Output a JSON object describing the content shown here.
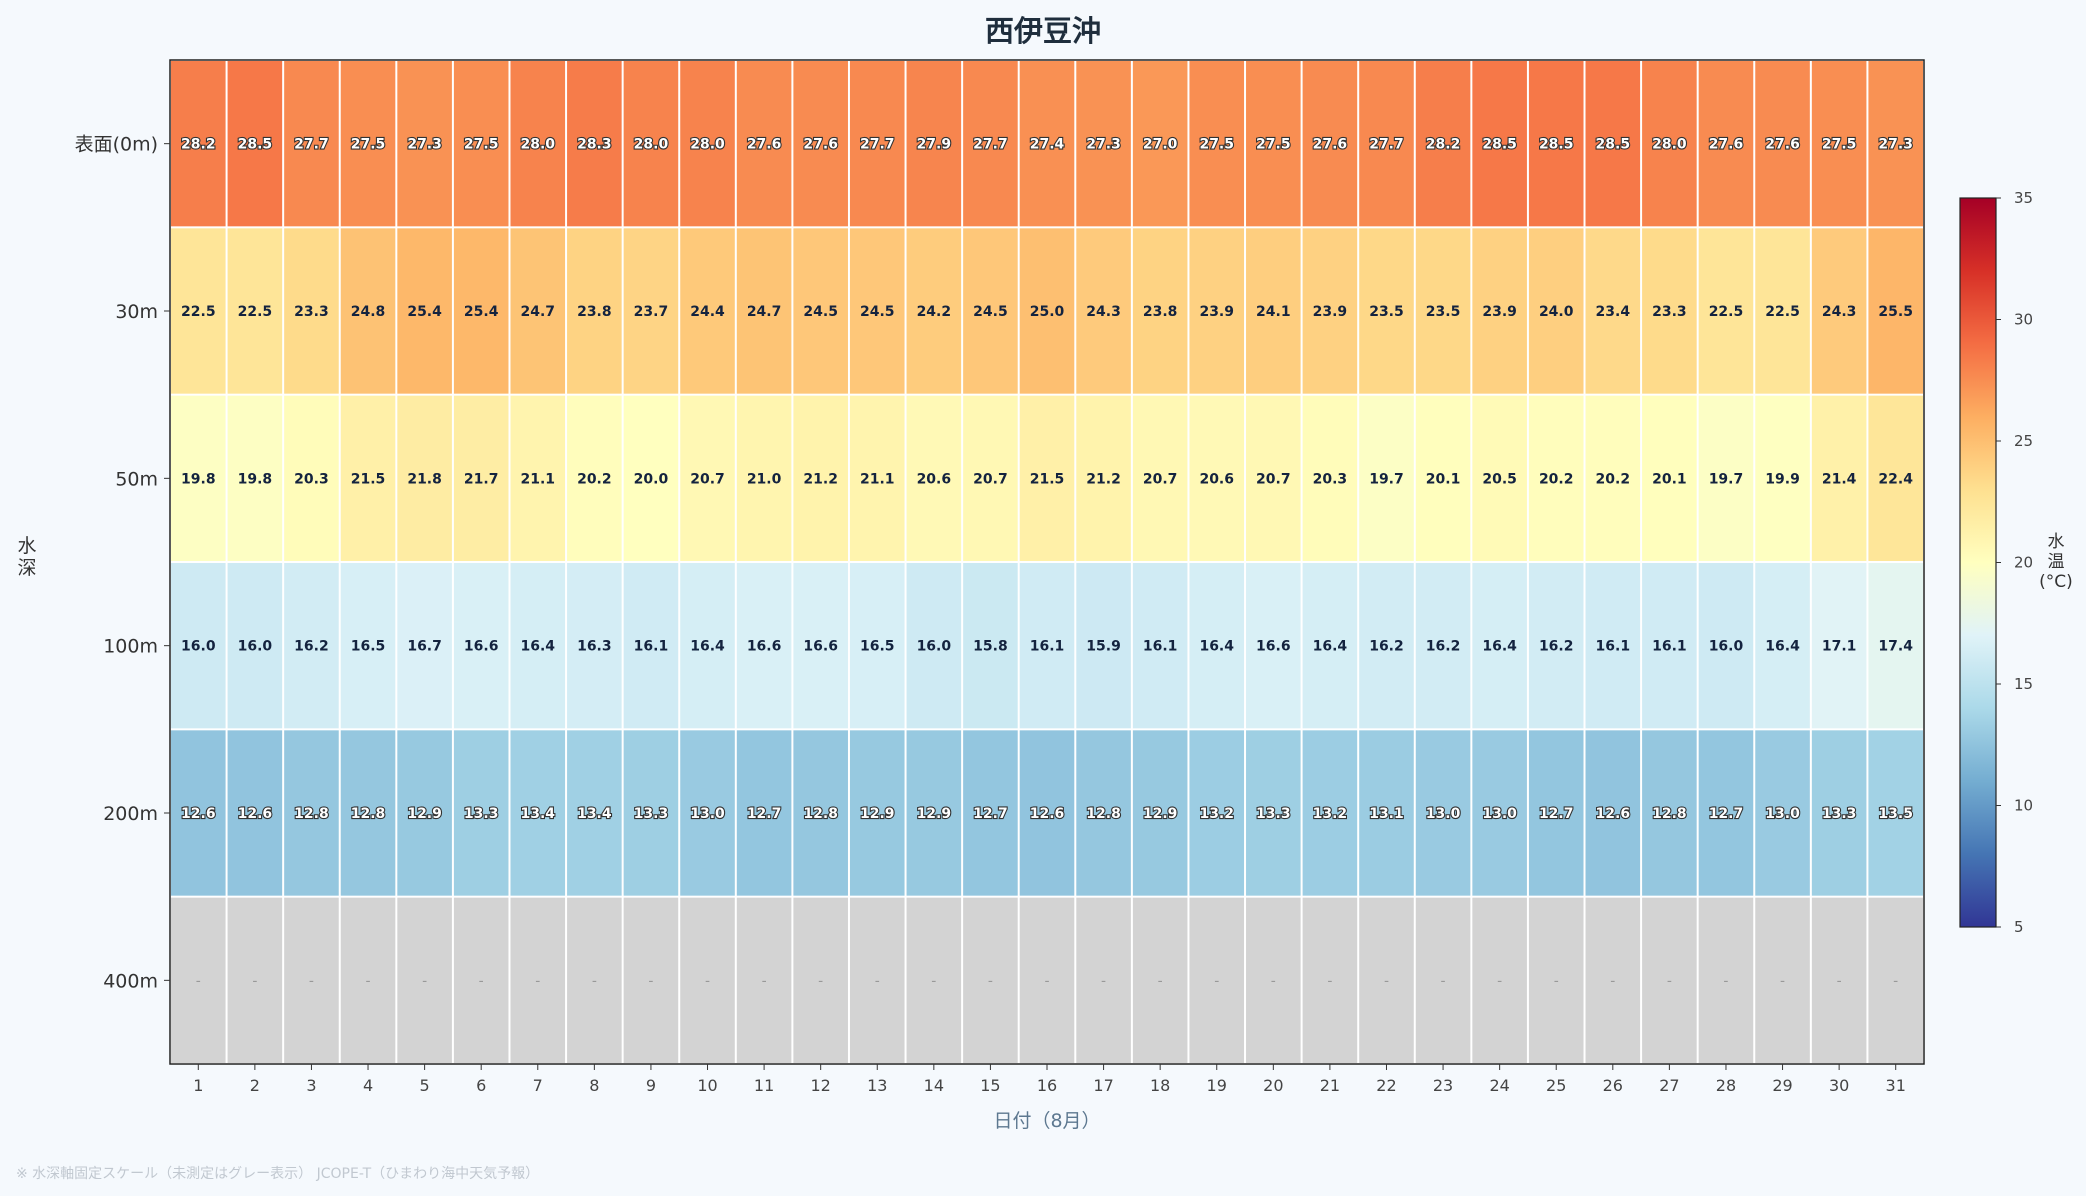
{
  "chart_data": {
    "type": "heatmap",
    "title": "西伊豆沖",
    "xlabel": "日付（8月）",
    "ylabel": "水深",
    "colorbar_label": "水温(°C)",
    "colorbar_ticks": [
      5,
      10,
      15,
      20,
      25,
      30,
      35
    ],
    "color_range": [
      5,
      35
    ],
    "colormap": "RdYlBu_r",
    "missing_color": "#d3d3d3",
    "missing_label": "-",
    "x": [
      1,
      2,
      3,
      4,
      5,
      6,
      7,
      8,
      9,
      10,
      11,
      12,
      13,
      14,
      15,
      16,
      17,
      18,
      19,
      20,
      21,
      22,
      23,
      24,
      25,
      26,
      27,
      28,
      29,
      30,
      31
    ],
    "y": [
      "表面(0m)",
      "30m",
      "50m",
      "100m",
      "200m",
      "400m"
    ],
    "values": [
      [
        28.2,
        28.5,
        27.7,
        27.5,
        27.3,
        27.5,
        28.0,
        28.3,
        28.0,
        28.0,
        27.6,
        27.6,
        27.7,
        27.9,
        27.7,
        27.4,
        27.3,
        27.0,
        27.5,
        27.5,
        27.6,
        27.7,
        28.2,
        28.5,
        28.5,
        28.5,
        28.0,
        27.6,
        27.6,
        27.5,
        27.3
      ],
      [
        22.5,
        22.5,
        23.3,
        24.8,
        25.4,
        25.4,
        24.7,
        23.8,
        23.7,
        24.4,
        24.7,
        24.5,
        24.5,
        24.2,
        24.5,
        25.0,
        24.3,
        23.8,
        23.9,
        24.1,
        23.9,
        23.5,
        23.5,
        23.9,
        24.0,
        23.4,
        23.3,
        22.5,
        22.5,
        24.3,
        25.5
      ],
      [
        19.8,
        19.8,
        20.3,
        21.5,
        21.8,
        21.7,
        21.1,
        20.2,
        20.0,
        20.7,
        21.0,
        21.2,
        21.1,
        20.6,
        20.7,
        21.5,
        21.2,
        20.7,
        20.6,
        20.7,
        20.3,
        19.7,
        20.1,
        20.5,
        20.2,
        20.2,
        20.1,
        19.7,
        19.9,
        21.4,
        22.4
      ],
      [
        16.0,
        16.0,
        16.2,
        16.5,
        16.7,
        16.6,
        16.4,
        16.3,
        16.1,
        16.4,
        16.6,
        16.6,
        16.5,
        16.0,
        15.8,
        16.1,
        15.9,
        16.1,
        16.4,
        16.6,
        16.4,
        16.2,
        16.2,
        16.4,
        16.2,
        16.1,
        16.1,
        16.0,
        16.4,
        17.1,
        17.4
      ],
      [
        12.6,
        12.6,
        12.8,
        12.8,
        12.9,
        13.3,
        13.4,
        13.4,
        13.3,
        13.0,
        12.7,
        12.8,
        12.9,
        12.9,
        12.7,
        12.6,
        12.8,
        12.9,
        13.2,
        13.3,
        13.2,
        13.1,
        13.0,
        13.0,
        12.7,
        12.6,
        12.8,
        12.7,
        13.0,
        13.3,
        13.5
      ],
      [
        null,
        null,
        null,
        null,
        null,
        null,
        null,
        null,
        null,
        null,
        null,
        null,
        null,
        null,
        null,
        null,
        null,
        null,
        null,
        null,
        null,
        null,
        null,
        null,
        null,
        null,
        null,
        null,
        null,
        null,
        null
      ]
    ]
  },
  "footnote": "※ 水深軸固定スケール（未測定はグレー表示） JCOPE-T（ひまわり海中天気予報）"
}
